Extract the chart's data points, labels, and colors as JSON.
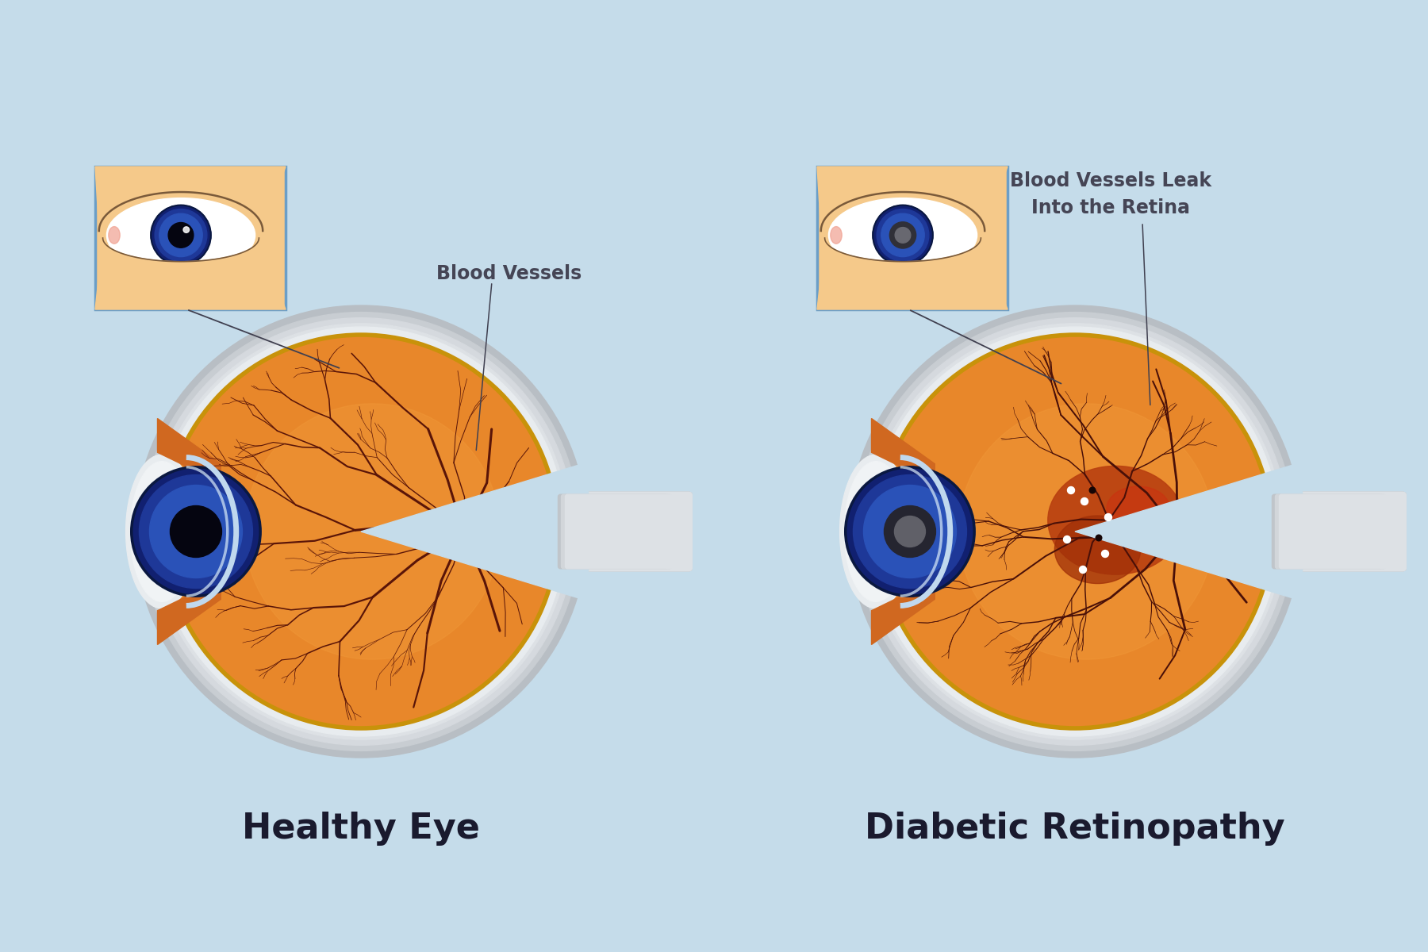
{
  "bg_color": "#c5dcea",
  "label_left": "Healthy Eye",
  "label_right": "Diabetic Retinopathy",
  "annotation_left": "Blood Vessels",
  "annotation_right": "Blood Vessels Leak\nInto the Retina",
  "label_color": "#1a1a2e",
  "annotation_color": "#454555",
  "label_fontsize": 32,
  "annotation_fontsize": 17,
  "skin_color": "#f5c98a",
  "skin_border": "#6b9ec7",
  "vessel_color": "#5a1508",
  "vessel_color_dr": "#4a1008"
}
